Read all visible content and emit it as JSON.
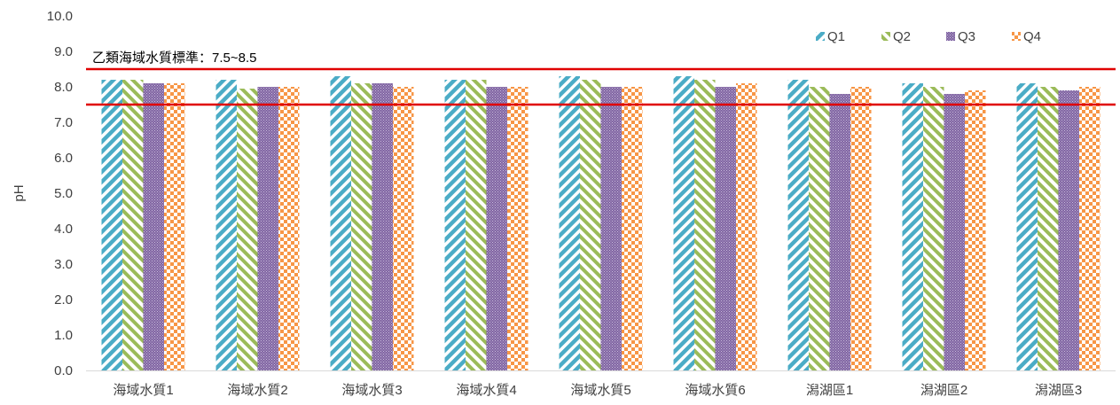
{
  "chart_data": {
    "type": "bar",
    "title": "",
    "xlabel": "",
    "ylabel": "pH",
    "ylim": [
      0,
      10
    ],
    "yticks": [
      "0.0",
      "1.0",
      "2.0",
      "3.0",
      "4.0",
      "5.0",
      "6.0",
      "7.0",
      "8.0",
      "9.0",
      "10.0"
    ],
    "grid": false,
    "legend_position": "top-right",
    "categories": [
      "海域水質1",
      "海域水質2",
      "海域水質3",
      "海域水質4",
      "海域水質5",
      "海域水質6",
      "潟湖區1",
      "潟湖區2",
      "潟湖區3"
    ],
    "series": [
      {
        "name": "Q1",
        "values": [
          8.2,
          8.2,
          8.3,
          8.2,
          8.3,
          8.3,
          8.2,
          8.1,
          8.1
        ],
        "color": "#4BACC6",
        "pattern": "diagonal-stripes"
      },
      {
        "name": "Q2",
        "values": [
          8.2,
          7.95,
          8.1,
          8.2,
          8.2,
          8.2,
          8.0,
          8.0,
          8.0
        ],
        "color": "#9BBB59",
        "pattern": "diagonal-stripes-reverse"
      },
      {
        "name": "Q3",
        "values": [
          8.1,
          8.0,
          8.1,
          8.0,
          8.0,
          8.0,
          7.8,
          7.8,
          7.9
        ],
        "color": "#8064A2",
        "pattern": "fine-dots"
      },
      {
        "name": "Q4",
        "values": [
          8.1,
          8.0,
          8.0,
          8.0,
          8.0,
          8.1,
          8.0,
          7.9,
          8.0
        ],
        "color": "#F79646",
        "pattern": "checkerboard"
      }
    ],
    "reference_lines": [
      {
        "value": 8.5,
        "color": "#E00000"
      },
      {
        "value": 7.5,
        "color": "#E00000"
      }
    ],
    "annotation": "乙類海域水質標準：7.5~8.5"
  }
}
